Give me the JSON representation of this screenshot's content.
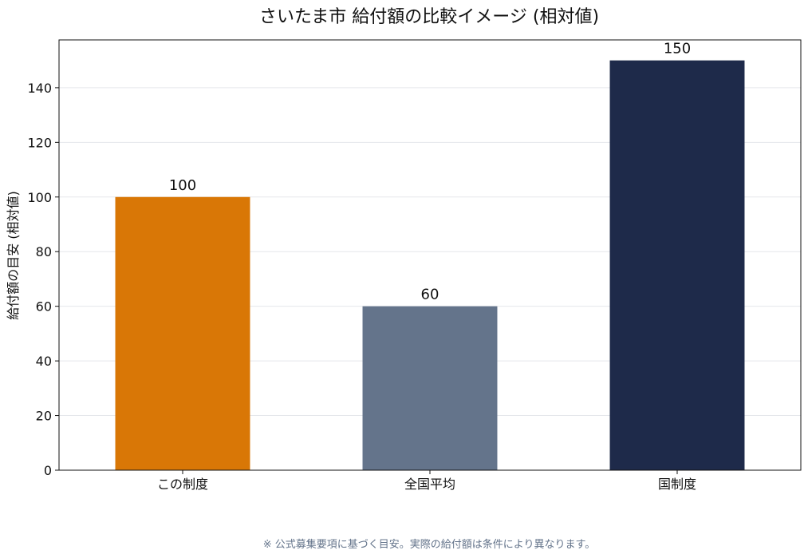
{
  "chart_data": {
    "type": "bar",
    "title": "さいたま市 給付額の比較イメージ (相対値)",
    "xlabel": "",
    "ylabel": "給付額の目安 (相対値)",
    "categories": [
      "この制度",
      "全国平均",
      "国制度"
    ],
    "values": [
      100,
      60,
      150
    ],
    "colors": [
      "#d97706",
      "#64748b",
      "#1e2a4a"
    ],
    "ylim": [
      0,
      157.5
    ],
    "yticks": [
      0,
      20,
      40,
      60,
      80,
      100,
      120,
      140
    ],
    "grid": true,
    "legend": "none"
  },
  "footnote": "※ 公式募集要項に基づく目安。実際の給付額は条件により異なります。"
}
